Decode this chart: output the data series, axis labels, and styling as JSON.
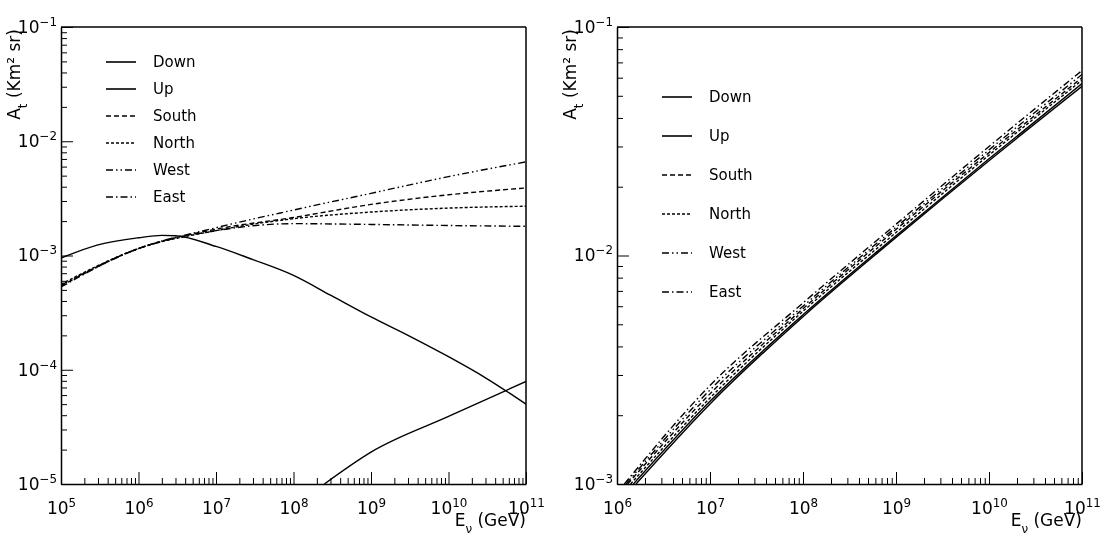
{
  "chart_data": [
    {
      "type": "line",
      "xlabel": "E$_{ν}$ (GeV)",
      "ylabel": "A$_{t}$ (Km² sr)",
      "log": "xy",
      "legend": "top left",
      "grid": false,
      "xlim": [
        100000,
        100000000000
      ],
      "ylim": [
        1e-05,
        0.1
      ],
      "xticks": [
        {
          "value": 100000,
          "label": "10$^{5}$"
        },
        {
          "value": 200000,
          "label": null
        },
        {
          "value": 300000,
          "label": null
        },
        {
          "value": 400000,
          "label": null
        },
        {
          "value": 500000,
          "label": null
        },
        {
          "value": 600000,
          "label": null
        },
        {
          "value": 700000,
          "label": null
        },
        {
          "value": 800000,
          "label": null
        },
        {
          "value": 900000,
          "label": null
        },
        {
          "value": 1000000,
          "label": "10$^{6}$"
        },
        {
          "value": 2000000,
          "label": null
        },
        {
          "value": 3000000,
          "label": null
        },
        {
          "value": 4000000,
          "label": null
        },
        {
          "value": 5000000,
          "label": null
        },
        {
          "value": 6000000,
          "label": null
        },
        {
          "value": 7000000,
          "label": null
        },
        {
          "value": 8000000,
          "label": null
        },
        {
          "value": 9000000,
          "label": null
        },
        {
          "value": 10000000,
          "label": "10$^{7}$"
        },
        {
          "value": 20000000,
          "label": null
        },
        {
          "value": 30000000,
          "label": null
        },
        {
          "value": 40000000,
          "label": null
        },
        {
          "value": 50000000,
          "label": null
        },
        {
          "value": 60000000,
          "label": null
        },
        {
          "value": 70000000,
          "label": null
        },
        {
          "value": 80000000,
          "label": null
        },
        {
          "value": 90000000,
          "label": null
        },
        {
          "value": 100000000,
          "label": "10$^{8}$"
        },
        {
          "value": 200000000,
          "label": null
        },
        {
          "value": 300000000,
          "label": null
        },
        {
          "value": 400000000,
          "label": null
        },
        {
          "value": 500000000,
          "label": null
        },
        {
          "value": 600000000,
          "label": null
        },
        {
          "value": 700000000,
          "label": null
        },
        {
          "value": 800000000,
          "label": null
        },
        {
          "value": 900000000,
          "label": null
        },
        {
          "value": 1000000000,
          "label": "10$^{9}$"
        },
        {
          "value": 2000000000,
          "label": null
        },
        {
          "value": 3000000000,
          "label": null
        },
        {
          "value": 4000000000,
          "label": null
        },
        {
          "value": 5000000000,
          "label": null
        },
        {
          "value": 6000000000,
          "label": null
        },
        {
          "value": 7000000000,
          "label": null
        },
        {
          "value": 8000000000,
          "label": null
        },
        {
          "value": 9000000000,
          "label": null
        },
        {
          "value": 10000000000,
          "label": "10$^{10}$"
        },
        {
          "value": 20000000000,
          "label": null
        },
        {
          "value": 30000000000,
          "label": null
        },
        {
          "value": 40000000000,
          "label": null
        },
        {
          "value": 50000000000,
          "label": null
        },
        {
          "value": 60000000000,
          "label": null
        },
        {
          "value": 70000000000,
          "label": null
        },
        {
          "value": 80000000000,
          "label": null
        },
        {
          "value": 90000000000,
          "label": null
        },
        {
          "value": 100000000000,
          "label": "10$^{11}$"
        }
      ],
      "yticks": [
        {
          "value": 1e-05,
          "label": "10$^{−5}$"
        },
        {
          "value": 2e-05,
          "label": null
        },
        {
          "value": 3e-05,
          "label": null
        },
        {
          "value": 4e-05,
          "label": null
        },
        {
          "value": 5e-05,
          "label": null
        },
        {
          "value": 6e-05,
          "label": null
        },
        {
          "value": 7e-05,
          "label": null
        },
        {
          "value": 8e-05,
          "label": null
        },
        {
          "value": 9e-05,
          "label": null
        },
        {
          "value": 0.0001,
          "label": "10$^{−4}$"
        },
        {
          "value": 0.0002,
          "label": null
        },
        {
          "value": 0.0003,
          "label": null
        },
        {
          "value": 0.0004,
          "label": null
        },
        {
          "value": 0.0005,
          "label": null
        },
        {
          "value": 0.0006,
          "label": null
        },
        {
          "value": 0.0007,
          "label": null
        },
        {
          "value": 0.0008,
          "label": null
        },
        {
          "value": 0.0009,
          "label": null
        },
        {
          "value": 0.001,
          "label": "10$^{−3}$"
        },
        {
          "value": 0.002,
          "label": null
        },
        {
          "value": 0.003,
          "label": null
        },
        {
          "value": 0.004,
          "label": null
        },
        {
          "value": 0.005,
          "label": null
        },
        {
          "value": 0.006,
          "label": null
        },
        {
          "value": 0.007,
          "label": null
        },
        {
          "value": 0.008,
          "label": null
        },
        {
          "value": 0.009,
          "label": null
        },
        {
          "value": 0.01,
          "label": "10$^{−2}$"
        },
        {
          "value": 0.02,
          "label": null
        },
        {
          "value": 0.03,
          "label": null
        },
        {
          "value": 0.04,
          "label": null
        },
        {
          "value": 0.05,
          "label": null
        },
        {
          "value": 0.06,
          "label": null
        },
        {
          "value": 0.07,
          "label": null
        },
        {
          "value": 0.08,
          "label": null
        },
        {
          "value": 0.09,
          "label": null
        },
        {
          "value": 0.1,
          "label": "10$^{−1}$"
        }
      ],
      "series": [
        {
          "name": "Down",
          "color": "#000000",
          "line_style": "solid",
          "x": [
            100000,
            300000,
            1000000,
            2000000,
            3000000,
            10000000,
            30000000,
            100000000,
            300000000,
            1000000000,
            3000000000,
            10000000000,
            30000000000,
            100000000000
          ],
          "values": [
            0.00095,
            0.00124,
            0.00143,
            0.0015,
            0.00149,
            0.0012,
            0.00092,
            0.00067,
            0.00045,
            0.00029,
            0.0002,
            0.00013,
            8.5e-05,
            5e-05
          ]
        },
        {
          "name": "Up",
          "color": "#000000",
          "line_style": "solid",
          "x": [
            250000000,
            1000000000,
            10000000000,
            100000000000
          ],
          "values": [
            1e-05,
            1.9e-05,
            3.9e-05,
            7.9e-05
          ]
        },
        {
          "name": "South",
          "color": "#000000",
          "line_style": "dashed",
          "x": [
            100000,
            1000000,
            10000000,
            100000000,
            1000000000,
            10000000000,
            100000000000
          ],
          "values": [
            0.00054,
            0.00115,
            0.0017,
            0.00215,
            0.0028,
            0.0034,
            0.0039
          ]
        },
        {
          "name": "North",
          "color": "#000000",
          "line_style": "dotted",
          "x": [
            100000,
            1000000,
            10000000,
            100000000,
            1000000000,
            10000000000,
            100000000000
          ],
          "values": [
            0.00056,
            0.00115,
            0.00165,
            0.0021,
            0.0024,
            0.0026,
            0.0027
          ]
        },
        {
          "name": "West",
          "color": "#000000",
          "line_style": "dashdotdot",
          "x": [
            100000,
            1000000,
            10000000,
            100000000,
            1000000000,
            10000000000,
            100000000000
          ],
          "values": [
            0.00055,
            0.00115,
            0.00175,
            0.0025,
            0.0035,
            0.0049,
            0.0066
          ]
        },
        {
          "name": "East",
          "color": "#000000",
          "line_style": "dashdot",
          "x": [
            100000,
            1000000,
            10000000,
            100000000,
            1000000000,
            10000000000,
            100000000000
          ],
          "values": [
            0.00053,
            0.00115,
            0.00165,
            0.0019,
            0.00187,
            0.00183,
            0.0018
          ]
        }
      ]
    },
    {
      "type": "line",
      "xlabel": "E$_{ν}$ (GeV)",
      "ylabel": "A$_{t}$ (Km² sr)",
      "log": "xy",
      "legend": "top left",
      "grid": false,
      "xlim": [
        1000000,
        100000000000
      ],
      "ylim": [
        0.001,
        0.1
      ],
      "xticks": [
        {
          "value": 1000000,
          "label": "10$^{6}$"
        },
        {
          "value": 2000000,
          "label": null
        },
        {
          "value": 3000000,
          "label": null
        },
        {
          "value": 4000000,
          "label": null
        },
        {
          "value": 5000000,
          "label": null
        },
        {
          "value": 6000000,
          "label": null
        },
        {
          "value": 7000000,
          "label": null
        },
        {
          "value": 8000000,
          "label": null
        },
        {
          "value": 9000000,
          "label": null
        },
        {
          "value": 10000000,
          "label": "10$^{7}$"
        },
        {
          "value": 20000000,
          "label": null
        },
        {
          "value": 30000000,
          "label": null
        },
        {
          "value": 40000000,
          "label": null
        },
        {
          "value": 50000000,
          "label": null
        },
        {
          "value": 60000000,
          "label": null
        },
        {
          "value": 70000000,
          "label": null
        },
        {
          "value": 80000000,
          "label": null
        },
        {
          "value": 90000000,
          "label": null
        },
        {
          "value": 100000000,
          "label": "10$^{8}$"
        },
        {
          "value": 200000000,
          "label": null
        },
        {
          "value": 300000000,
          "label": null
        },
        {
          "value": 400000000,
          "label": null
        },
        {
          "value": 500000000,
          "label": null
        },
        {
          "value": 600000000,
          "label": null
        },
        {
          "value": 700000000,
          "label": null
        },
        {
          "value": 800000000,
          "label": null
        },
        {
          "value": 900000000,
          "label": null
        },
        {
          "value": 1000000000,
          "label": "10$^{9}$"
        },
        {
          "value": 2000000000,
          "label": null
        },
        {
          "value": 3000000000,
          "label": null
        },
        {
          "value": 4000000000,
          "label": null
        },
        {
          "value": 5000000000,
          "label": null
        },
        {
          "value": 6000000000,
          "label": null
        },
        {
          "value": 7000000000,
          "label": null
        },
        {
          "value": 8000000000,
          "label": null
        },
        {
          "value": 9000000000,
          "label": null
        },
        {
          "value": 10000000000,
          "label": "10$^{10}$"
        },
        {
          "value": 20000000000,
          "label": null
        },
        {
          "value": 30000000000,
          "label": null
        },
        {
          "value": 40000000000,
          "label": null
        },
        {
          "value": 50000000000,
          "label": null
        },
        {
          "value": 60000000000,
          "label": null
        },
        {
          "value": 70000000000,
          "label": null
        },
        {
          "value": 80000000000,
          "label": null
        },
        {
          "value": 90000000000,
          "label": null
        },
        {
          "value": 100000000000,
          "label": "10$^{11}$"
        }
      ],
      "yticks": [
        {
          "value": 0.001,
          "label": "10$^{−3}$"
        },
        {
          "value": 0.002,
          "label": null
        },
        {
          "value": 0.003,
          "label": null
        },
        {
          "value": 0.004,
          "label": null
        },
        {
          "value": 0.005,
          "label": null
        },
        {
          "value": 0.006,
          "label": null
        },
        {
          "value": 0.007,
          "label": null
        },
        {
          "value": 0.008,
          "label": null
        },
        {
          "value": 0.009,
          "label": null
        },
        {
          "value": 0.01,
          "label": "10$^{−2}$"
        },
        {
          "value": 0.02,
          "label": null
        },
        {
          "value": 0.03,
          "label": null
        },
        {
          "value": 0.04,
          "label": null
        },
        {
          "value": 0.05,
          "label": null
        },
        {
          "value": 0.06,
          "label": null
        },
        {
          "value": 0.07,
          "label": null
        },
        {
          "value": 0.08,
          "label": null
        },
        {
          "value": 0.09,
          "label": null
        },
        {
          "value": 0.1,
          "label": "10$^{−1}$"
        }
      ],
      "series": [
        {
          "name": "Down",
          "color": "#000000",
          "line_style": "solid",
          "x": [
            1500000,
            10000000,
            100000000,
            1000000000,
            10000000000,
            100000000000
          ],
          "values": [
            0.001,
            0.0023,
            0.0055,
            0.0122,
            0.0265,
            0.0565
          ]
        },
        {
          "name": "Up",
          "color": "#000000",
          "line_style": "solid",
          "x": [
            1600000,
            10000000,
            100000000,
            1000000000,
            10000000000,
            100000000000
          ],
          "values": [
            0.001,
            0.00224,
            0.0054,
            0.012,
            0.026,
            0.055
          ]
        },
        {
          "name": "South",
          "color": "#000000",
          "line_style": "dashed",
          "x": [
            1300000,
            10000000,
            100000000,
            1000000000,
            10000000000,
            100000000000
          ],
          "values": [
            0.001,
            0.00248,
            0.00585,
            0.013,
            0.0282,
            0.06
          ]
        },
        {
          "name": "North",
          "color": "#000000",
          "line_style": "dotted",
          "x": [
            1400000,
            10000000,
            100000000,
            1000000000,
            10000000000,
            100000000000
          ],
          "values": [
            0.001,
            0.00238,
            0.0057,
            0.0126,
            0.0275,
            0.0585
          ]
        },
        {
          "name": "West",
          "color": "#000000",
          "line_style": "dashdotdot",
          "x": [
            1250000,
            10000000,
            100000000,
            1000000000,
            10000000000,
            100000000000
          ],
          "values": [
            0.001,
            0.00258,
            0.006,
            0.0133,
            0.029,
            0.062
          ]
        },
        {
          "name": "East",
          "color": "#000000",
          "line_style": "dashdot",
          "x": [
            1200000,
            10000000,
            100000000,
            1000000000,
            10000000000,
            100000000000
          ],
          "values": [
            0.001,
            0.0027,
            0.0062,
            0.0137,
            0.03,
            0.0645
          ]
        }
      ]
    }
  ]
}
